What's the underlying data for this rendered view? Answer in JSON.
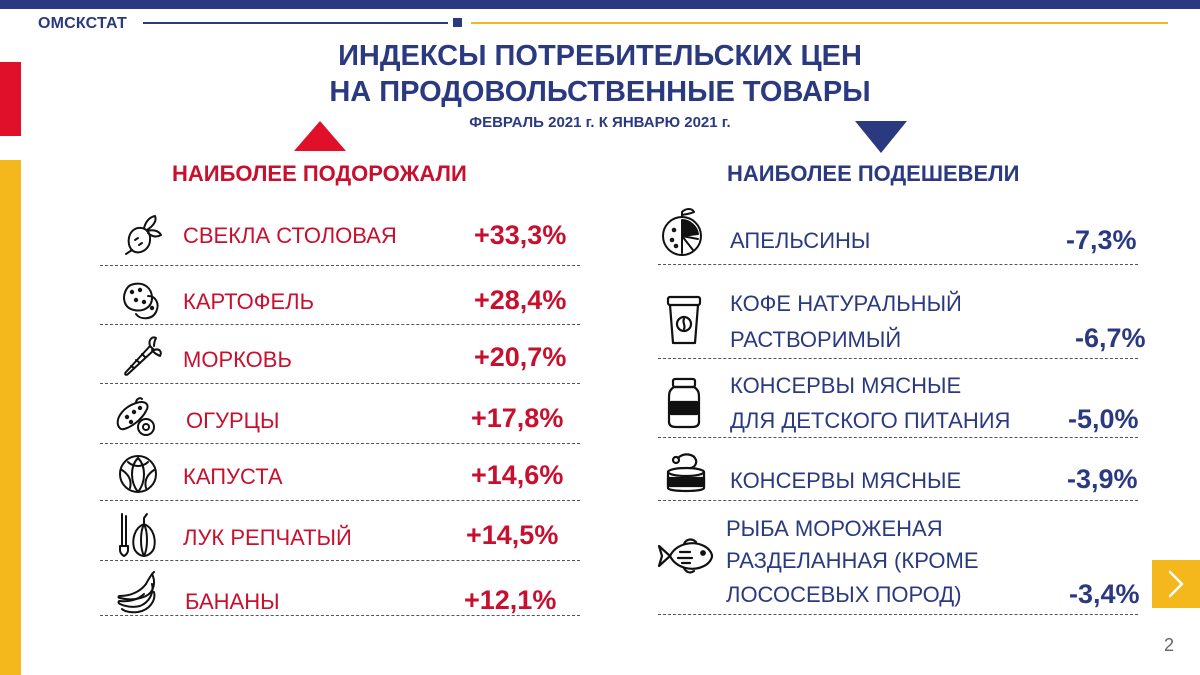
{
  "header": {
    "brand": "ОМСКСТАТ",
    "title_line1": "ИНДЕКСЫ ПОТРЕБИТЕЛЬСКИХ ЦЕН",
    "title_line2": "НА ПРОДОВОЛЬСТВЕННЫЕ ТОВАРЫ",
    "subtitle": "ФЕВРАЛЬ 2021 г. К ЯНВАРЮ 2021 г."
  },
  "colors": {
    "navy": "#2b3a80",
    "red": "#c8102e",
    "yellow": "#f5b81c"
  },
  "up": {
    "heading": "НАИБОЛЕЕ  ПОДОРОЖАЛИ",
    "items": [
      {
        "icon": "beet-icon",
        "label": "СВЕКЛА СТОЛОВАЯ",
        "value": "+33,3%"
      },
      {
        "icon": "potato-icon",
        "label": "КАРТОФЕЛЬ",
        "value": "+28,4%"
      },
      {
        "icon": "carrot-icon",
        "label": "МОРКОВЬ",
        "value": "+20,7%"
      },
      {
        "icon": "cucumber-icon",
        "label": "ОГУРЦЫ",
        "value": "+17,8%"
      },
      {
        "icon": "cabbage-icon",
        "label": "КАПУСТА",
        "value": "+14,6%"
      },
      {
        "icon": "onion-icon",
        "label": "ЛУК РЕПЧАТЫЙ",
        "value": "+14,5%"
      },
      {
        "icon": "banana-icon",
        "label": "БАНАНЫ",
        "value": "+12,1%"
      }
    ]
  },
  "down": {
    "heading": "НАИБОЛЕЕ  ПОДЕШЕВЕЛИ",
    "items": [
      {
        "icon": "orange-icon",
        "label_lines": [
          "АПЕЛЬСИНЫ"
        ],
        "value": "-7,3%"
      },
      {
        "icon": "coffee-cup-icon",
        "label_lines": [
          "КОФЕ НАТУРАЛЬНЫЙ",
          "РАСТВОРИМЫЙ"
        ],
        "value": "-6,7%"
      },
      {
        "icon": "jar-icon",
        "label_lines": [
          "КОНСЕРВЫ МЯСНЫЕ",
          "ДЛЯ ДЕТСКОГО ПИТАНИЯ"
        ],
        "value": "-5,0%"
      },
      {
        "icon": "tin-can-icon",
        "label_lines": [
          "КОНСЕРВЫ МЯСНЫЕ"
        ],
        "value": "-3,9%"
      },
      {
        "icon": "fish-icon",
        "label_lines": [
          "РЫБА МОРОЖЕНАЯ",
          "РАЗДЕЛАННАЯ (КРОМЕ",
          "ЛОСОСЕВЫХ ПОРОД)"
        ],
        "value": "-3,4%"
      }
    ]
  },
  "footer": {
    "page_number": "2",
    "next_icon": "chevron-right-icon"
  }
}
